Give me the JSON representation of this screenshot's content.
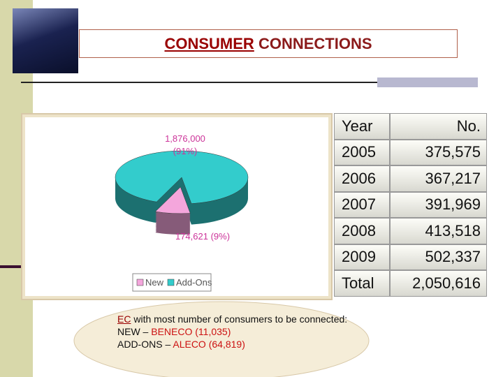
{
  "title_parts": [
    "CONSUMER",
    "CONNECTIONS"
  ],
  "chart_data": {
    "type": "pie",
    "categories": [
      "New",
      "Add-Ons"
    ],
    "values": [
      174621,
      1876000
    ],
    "value_labels": [
      "174,621 (9%)",
      "1,876,000 (91%)"
    ],
    "colors": [
      "#f4a6dc",
      "#33cccc"
    ],
    "legend": "bottom"
  },
  "table": {
    "header": [
      "Year",
      "No."
    ],
    "rows": [
      [
        "2005",
        "375,575"
      ],
      [
        "2006",
        "367,217"
      ],
      [
        "2007",
        "391,969"
      ],
      [
        "2008",
        "413,518"
      ],
      [
        "2009",
        "502,337"
      ],
      [
        "Total",
        "2,050,616"
      ]
    ]
  },
  "note": {
    "lines": [
      [
        "EC",
        " with most number of consumers to be connected:"
      ],
      [
        "NEW – ",
        "BENECO (11,035)"
      ],
      [
        "ADD-ONS – ",
        "ALECO (64,819)"
      ]
    ]
  }
}
